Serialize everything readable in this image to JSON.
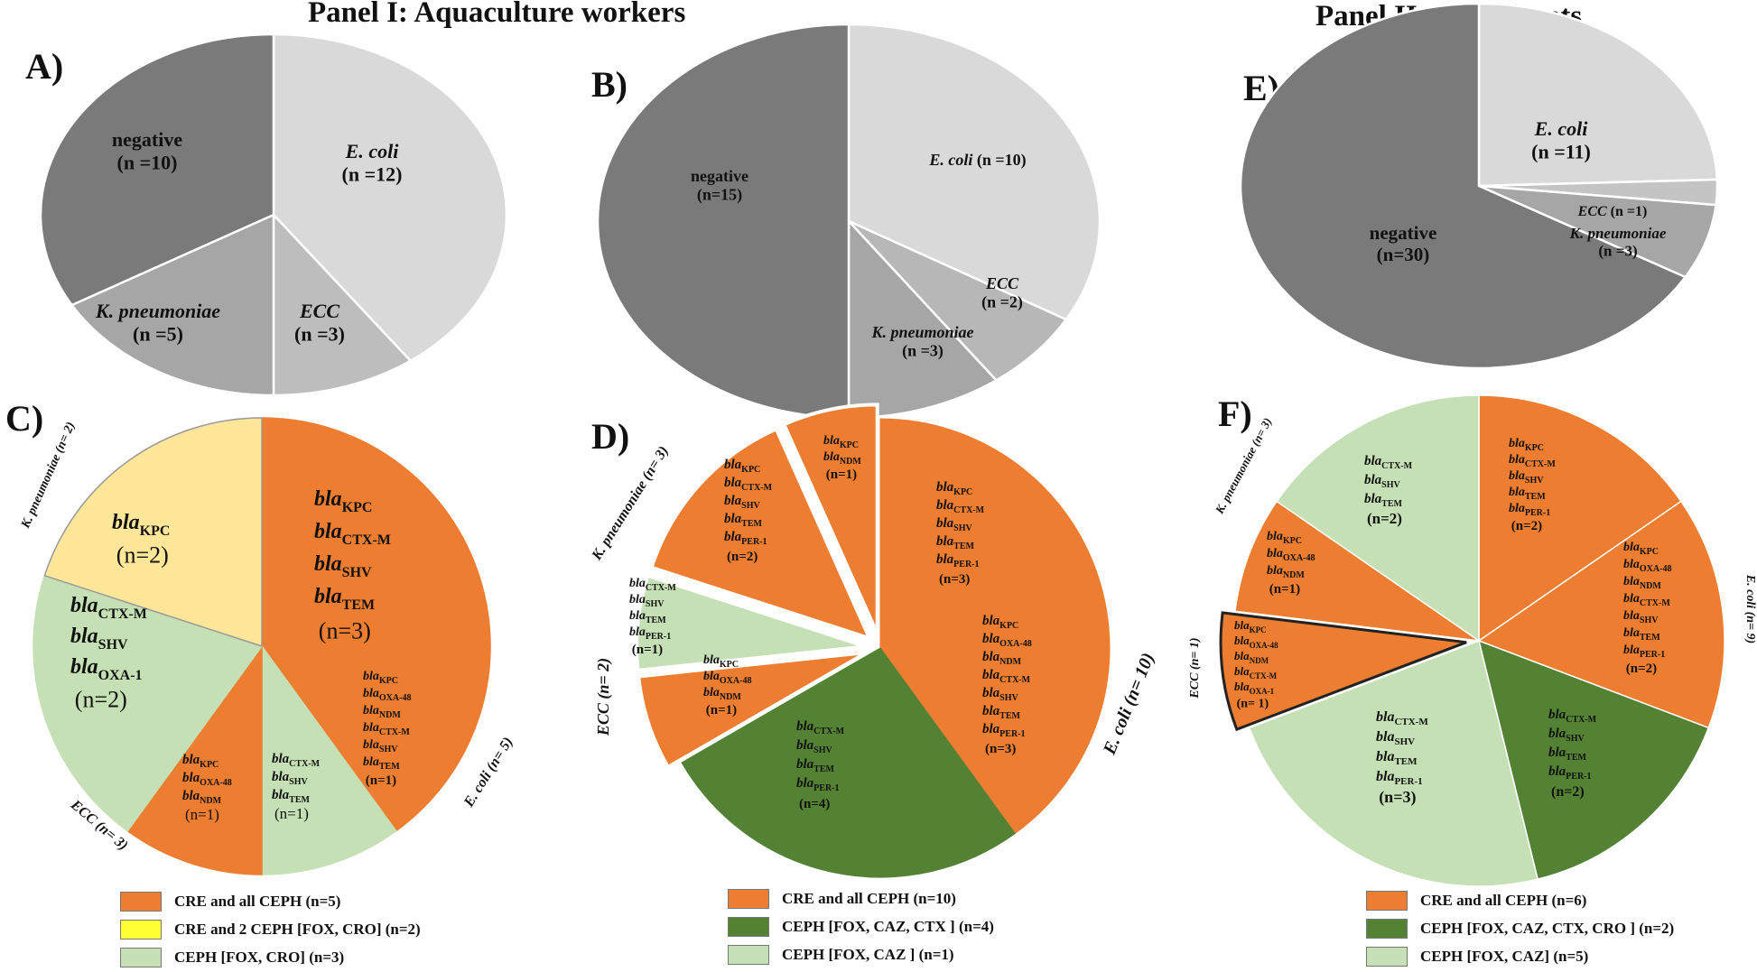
{
  "titles": {
    "panel1": "Panel I: Aquaculture workers",
    "panel2": "Panel II: Inhabitants"
  },
  "letters": {
    "A": "A)",
    "B": "B)",
    "C": "C)",
    "D": "D)",
    "E": "E)",
    "F": "F)"
  },
  "colors": {
    "negative": "#7a7a7a",
    "ecoli": "#d9d9d9",
    "ecc": "#b7b7b7",
    "kpn": "#a6a6a6",
    "cre": "#ed7d31",
    "cre2": "#ffe699",
    "fox_cro": "#c5e0b4",
    "fox_caz_ctx": "#548235",
    "fox_caz": "#c5e0b4"
  },
  "chart_data": [
    {
      "id": "A",
      "type": "pie",
      "slices": [
        {
          "name": "E. coli",
          "value": 12,
          "label": "(n =12)",
          "color": "#d9d9d9"
        },
        {
          "name": "ECC",
          "value": 3,
          "label": "(n =3)",
          "color": "#bdbdbd"
        },
        {
          "name": "K. pneumoniae",
          "value": 5,
          "label": "(n =5)",
          "color": "#a6a6a6"
        },
        {
          "name": "negative",
          "value": 10,
          "label": "(n =10)",
          "color": "#7a7a7a"
        }
      ]
    },
    {
      "id": "B",
      "type": "pie",
      "slices": [
        {
          "name": "E. coli",
          "value": 10,
          "label": "(n =10)",
          "color": "#d9d9d9"
        },
        {
          "name": "ECC",
          "value": 2,
          "label": "(n =2)",
          "color": "#b7b7b7"
        },
        {
          "name": "K. pneumoniae",
          "value": 3,
          "label": "(n =3)",
          "color": "#a6a6a6"
        },
        {
          "name": "negative",
          "value": 15,
          "label": "(n=15)",
          "color": "#7a7a7a"
        }
      ]
    },
    {
      "id": "E",
      "type": "pie",
      "slices": [
        {
          "name": "E. coli",
          "value": 11,
          "label": "(n =11)",
          "color": "#d9d9d9"
        },
        {
          "name": "ECC",
          "value": 1,
          "label": "(n =1)",
          "color": "#c4c4c4"
        },
        {
          "name": "K. pneumoniae",
          "value": 3,
          "label": "(n =3)",
          "color": "#a6a6a6"
        },
        {
          "name": "negative",
          "value": 30,
          "label": "(n=30)",
          "color": "#7a7a7a"
        }
      ]
    },
    {
      "id": "C",
      "type": "pie",
      "slices": [
        {
          "group": "E. coli",
          "value": 3,
          "category": "CRE and all CEPH",
          "genes": [
            "KPC",
            "CTX-M",
            "SHV",
            "TEM"
          ],
          "n": "(n=3)"
        },
        {
          "group": "E. coli",
          "value": 1,
          "category": "CRE and all CEPH",
          "genes": [
            "KPC",
            "OXA-48",
            "NDM",
            "CTX-M",
            "SHV",
            "TEM"
          ],
          "n": "(n=1)"
        },
        {
          "group": "E. coli",
          "value": 1,
          "category": "CEPH [FOX, CRO]",
          "genes": [
            "CTX-M",
            "SHV",
            "TEM"
          ],
          "n": "(n=1)"
        },
        {
          "group": "ECC",
          "value": 1,
          "category": "CRE and all CEPH",
          "genes": [
            "KPC",
            "OXA-48",
            "NDM"
          ],
          "n": "(n=1)"
        },
        {
          "group": "ECC",
          "value": 2,
          "category": "CEPH [FOX, CRO]",
          "genes": [
            "CTX-M",
            "SHV",
            "OXA-1"
          ],
          "n": "(n=2)"
        },
        {
          "group": "K. pneumoniae",
          "value": 2,
          "category": "CRE and 2 CEPH [FOX, CRO]",
          "genes": [
            "KPC"
          ],
          "n": "(n=2)"
        }
      ],
      "group_labels": {
        "ecoli": "E. coli (n= 5)",
        "ecc": "ECC (n= 3)",
        "kpn": "K. pneumoniae (n= 2)"
      }
    },
    {
      "id": "D",
      "type": "pie",
      "slices": [
        {
          "group": "E. coli",
          "value": 3,
          "category": "CRE and all CEPH",
          "genes": [
            "KPC",
            "CTX-M",
            "SHV",
            "TEM",
            "PER-1"
          ],
          "n": "(n=3)"
        },
        {
          "group": "E. coli",
          "value": 3,
          "category": "CRE and all CEPH",
          "genes": [
            "KPC",
            "OXA-48",
            "NDM",
            "CTX-M",
            "SHV",
            "TEM",
            "PER-1"
          ],
          "n": "(n=3)"
        },
        {
          "group": "E. coli",
          "value": 4,
          "category": "CEPH [FOX, CAZ, CTX ]",
          "genes": [
            "CTX-M",
            "SHV",
            "TEM",
            "PER-1"
          ],
          "n": "(n=4)"
        },
        {
          "group": "ECC",
          "value": 1,
          "category": "CRE and all CEPH",
          "genes": [
            "KPC",
            "OXA-48",
            "NDM"
          ],
          "n": "(n=1)"
        },
        {
          "group": "ECC",
          "value": 1,
          "category": "CEPH [FOX, CAZ ]",
          "genes": [
            "CTX-M",
            "SHV",
            "TEM",
            "PER-1"
          ],
          "n": "(n=1)"
        },
        {
          "group": "K. pneumoniae",
          "value": 2,
          "category": "CRE and all CEPH",
          "genes": [
            "KPC",
            "CTX-M",
            "SHV",
            "TEM",
            "PER-1"
          ],
          "n": "(n=2)"
        },
        {
          "group": "K. pneumoniae",
          "value": 1,
          "category": "CRE and all CEPH",
          "genes": [
            "KPC",
            "NDM"
          ],
          "n": "(n=1)"
        }
      ],
      "group_labels": {
        "ecoli": "E. coli (n= 10)",
        "ecc": "ECC (n= 2)",
        "kpn": "K. pneumoniae (n= 3)"
      }
    },
    {
      "id": "F",
      "type": "pie",
      "slices": [
        {
          "group": "E. coli",
          "value": 2,
          "category": "CRE and all CEPH",
          "genes": [
            "KPC",
            "CTX-M",
            "SHV",
            "TEM",
            "PER-1"
          ],
          "n": "(n=2)"
        },
        {
          "group": "E. coli",
          "value": 2,
          "category": "CRE and all CEPH",
          "genes": [
            "KPC",
            "OXA-48",
            "NDM",
            "CTX-M",
            "SHV",
            "TEM",
            "PER-1"
          ],
          "n": "(n=2)"
        },
        {
          "group": "E. coli",
          "value": 2,
          "category": "CEPH [FOX, CAZ, CTX, CRO ]",
          "genes": [
            "CTX-M",
            "SHV",
            "TEM",
            "PER-1"
          ],
          "n": "(n=2)"
        },
        {
          "group": "E. coli",
          "value": 3,
          "category": "CEPH [FOX, CAZ]",
          "genes": [
            "CTX-M",
            "SHV",
            "TEM",
            "PER-1"
          ],
          "n": "(n=3)"
        },
        {
          "group": "ECC",
          "value": 1,
          "category": "CRE and all CEPH",
          "genes": [
            "KPC",
            "OXA-48",
            "NDM",
            "CTX-M",
            "OXA-1"
          ],
          "n": "(n= 1)"
        },
        {
          "group": "K. pneumoniae",
          "value": 1,
          "category": "CRE and all CEPH",
          "genes": [
            "KPC",
            "OXA-48",
            "NDM"
          ],
          "n": "(n=1)"
        },
        {
          "group": "K. pneumoniae",
          "value": 2,
          "category": "CEPH [FOX, CAZ]",
          "genes": [
            "CTX-M",
            "SHV",
            "TEM"
          ],
          "n": "(n=2)"
        }
      ],
      "group_labels": {
        "ecoli": "E. coli (n= 9)",
        "ecc": "ECC (n= 1)",
        "kpn": "K. pneumoniae (n= 3)"
      }
    }
  ],
  "legends": {
    "C": [
      {
        "label": "CRE and all CEPH (n=5)",
        "color": "#ed7d31"
      },
      {
        "label": "CRE and 2 CEPH [FOX, CRO] (n=2)",
        "color": "#ffff33"
      },
      {
        "label": "CEPH [FOX, CRO] (n=3)",
        "color": "#c5e0b4"
      }
    ],
    "D": [
      {
        "label": "CRE and all CEPH (n=10)",
        "color": "#ed7d31"
      },
      {
        "label": "CEPH [FOX, CAZ, CTX ] (n=4)",
        "color": "#548235"
      },
      {
        "label": "CEPH [FOX, CAZ ] (n=1)",
        "color": "#c5e0b4"
      }
    ],
    "F": [
      {
        "label": "CRE and all CEPH (n=6)",
        "color": "#ed7d31"
      },
      {
        "label": "CEPH [FOX, CAZ, CTX, CRO ] (n=2)",
        "color": "#548235"
      },
      {
        "label": "CEPH [FOX, CAZ] (n=5)",
        "color": "#c5e0b4"
      }
    ]
  }
}
